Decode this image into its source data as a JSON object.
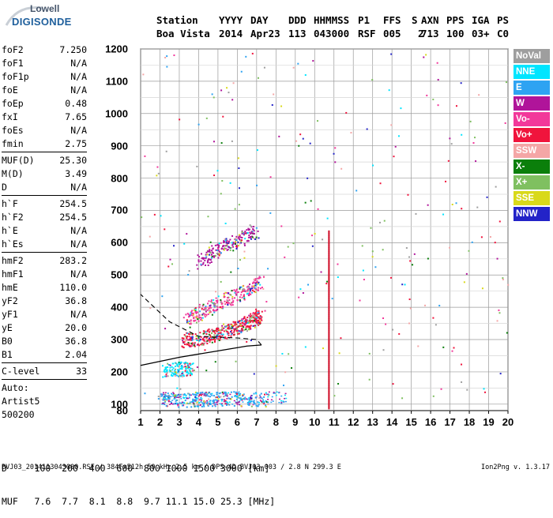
{
  "logo": {
    "top": "Lowell",
    "bottom": "DIGISONDE"
  },
  "header": {
    "labels": [
      "Station",
      "YYYY",
      "DAY",
      "DDD",
      "HHMMSS",
      "P1",
      "FFS",
      "S",
      "AXN",
      "PPS",
      "IGA",
      "PS"
    ],
    "values": [
      "Boa Vista",
      "2014",
      "Apr23",
      "113",
      "043000",
      "RSF",
      "005",
      "2",
      "713",
      "100",
      "03+",
      "C0"
    ]
  },
  "params_group1": [
    {
      "k": "foF2",
      "v": "7.250"
    },
    {
      "k": "foF1",
      "v": "N/A"
    },
    {
      "k": "foF1p",
      "v": "N/A"
    },
    {
      "k": "foE",
      "v": "N/A"
    },
    {
      "k": "foEp",
      "v": "0.48"
    },
    {
      "k": "fxI",
      "v": "7.65"
    },
    {
      "k": "foEs",
      "v": "N/A"
    },
    {
      "k": "fmin",
      "v": "2.75"
    }
  ],
  "params_group2": [
    {
      "k": "MUF(D)",
      "v": "25.30"
    },
    {
      "k": "M(D)",
      "v": "3.49"
    },
    {
      "k": "D",
      "v": "N/A"
    }
  ],
  "params_group3": [
    {
      "k": "h`F",
      "v": "254.5"
    },
    {
      "k": "h`F2",
      "v": "254.5"
    },
    {
      "k": "h`E",
      "v": "N/A"
    },
    {
      "k": "h`Es",
      "v": "N/A"
    }
  ],
  "params_group4": [
    {
      "k": "hmF2",
      "v": "283.2"
    },
    {
      "k": "hmF1",
      "v": "N/A"
    },
    {
      "k": "hmE",
      "v": "110.0"
    },
    {
      "k": "yF2",
      "v": "36.8"
    },
    {
      "k": "yF1",
      "v": "N/A"
    },
    {
      "k": "yE",
      "v": "20.0"
    },
    {
      "k": "B0",
      "v": "36.8"
    },
    {
      "k": "B1",
      "v": "2.04"
    }
  ],
  "params_group5": [
    {
      "k": "C-level",
      "v": "33"
    }
  ],
  "autoscale": [
    "Auto:",
    "Artist5",
    "500200"
  ],
  "legend": [
    {
      "label": "NoVal",
      "color": "#9e9e9e"
    },
    {
      "label": "NNE",
      "color": "#00e5ff"
    },
    {
      "label": "E",
      "color": "#2ea3f2"
    },
    {
      "label": "W",
      "color": "#b0149a"
    },
    {
      "label": "Vo-",
      "color": "#f2389a"
    },
    {
      "label": "Vo+",
      "color": "#f0143c"
    },
    {
      "label": "SSW",
      "color": "#f4a6a6"
    },
    {
      "label": "X-",
      "color": "#0b7f0b"
    },
    {
      "label": "X+",
      "color": "#7fc060"
    },
    {
      "label": "SSE",
      "color": "#d9d91a"
    },
    {
      "label": "NNW",
      "color": "#2323c8"
    }
  ],
  "muf_table": {
    "row1": "D     100  200  400  600  800 1000 1500 3000 [km]",
    "row2": "MUF   7.6  7.7  8.1  8.8  9.7 11.1 15.0 25.3 [MHz]"
  },
  "footer": {
    "left": "BVJ03_2014113043000.RSF / 384Fx512h 50 kHz 2.5 km / DPS-4D BVJ03 003 / 2.8 N 299.3 E",
    "right": "Ion2Png v. 1.3.17"
  },
  "chart_data": {
    "type": "scatter",
    "title": "",
    "xlabel": "",
    "ylabel": "",
    "xlim": [
      1,
      20
    ],
    "ylim": [
      80,
      1200
    ],
    "x_ticks": [
      "1",
      "2",
      "3",
      "4",
      "5",
      "6",
      "7",
      "8",
      "9",
      "10",
      "11",
      "12",
      "13",
      "14",
      "15",
      "16",
      "17",
      "18",
      "19",
      "20"
    ],
    "y_ticks": [
      "80",
      "100",
      "200",
      "300",
      "400",
      "500",
      "600",
      "700",
      "800",
      "900",
      "1000",
      "1100",
      "1200"
    ],
    "grid": true,
    "series": [
      {
        "name": "Vo+ (F2 trace)",
        "color": "#f0143c",
        "points": [
          [
            3.2,
            300
          ],
          [
            4.0,
            305
          ],
          [
            4.8,
            315
          ],
          [
            5.5,
            330
          ],
          [
            6.2,
            345
          ],
          [
            6.8,
            360
          ],
          [
            7.1,
            375
          ]
        ]
      },
      {
        "name": "Vo- (F2 2nd hop)",
        "color": "#f2389a",
        "points": [
          [
            3.3,
            360
          ],
          [
            4.2,
            390
          ],
          [
            5.2,
            420
          ],
          [
            6.4,
            450
          ],
          [
            7.2,
            480
          ]
        ]
      },
      {
        "name": "W (3rd hop)",
        "color": "#b0149a",
        "points": [
          [
            4.0,
            540
          ],
          [
            5.0,
            580
          ],
          [
            6.0,
            610
          ],
          [
            7.0,
            640
          ]
        ]
      },
      {
        "name": "E (low)",
        "color": "#2ea3f2",
        "points": [
          [
            2.0,
            115
          ],
          [
            3.5,
            115
          ],
          [
            4.5,
            118
          ],
          [
            6.0,
            118
          ],
          [
            7.5,
            115
          ]
        ]
      },
      {
        "name": "NNE (Es)",
        "color": "#00e5ff",
        "points": [
          [
            2.2,
            208
          ],
          [
            3.0,
            210
          ],
          [
            3.6,
            212
          ]
        ]
      }
    ],
    "vertical_line": {
      "x": 10.7,
      "color": "#d0102a"
    },
    "profile_curve": [
      [
        1.0,
        220
      ],
      [
        3.0,
        245
      ],
      [
        5.0,
        265
      ],
      [
        6.5,
        280
      ],
      [
        7.25,
        283.2
      ],
      [
        7.0,
        300
      ],
      [
        6.0,
        305
      ],
      [
        4.0,
        310
      ],
      [
        2.5,
        355
      ],
      [
        1.0,
        440
      ]
    ]
  }
}
